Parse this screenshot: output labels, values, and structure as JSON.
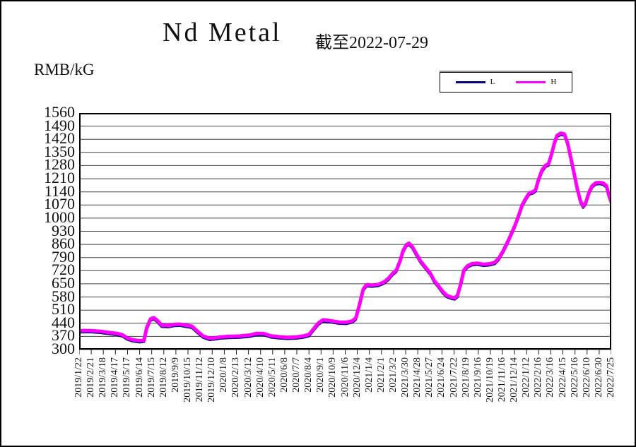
{
  "header": {
    "title": "Nd Metal",
    "asof_label": "截至2022-07-29"
  },
  "y_axis": {
    "unit_label": "RMB/kG"
  },
  "legend": {
    "items": [
      {
        "label": "L",
        "color": "#000080"
      },
      {
        "label": "H",
        "color": "#FF00FF"
      }
    ]
  },
  "chart_data": {
    "type": "line",
    "title": "Nd Metal",
    "subtitle": "截至2022-07-29",
    "ylabel": "RMB/kG",
    "ylim": [
      300,
      1560
    ],
    "y_tick_step": 70,
    "grid": "horizontal",
    "legend_position": "top-right",
    "y_ticks": [
      1560,
      1490,
      1420,
      1350,
      1280,
      1210,
      1140,
      1070,
      1000,
      930,
      860,
      790,
      720,
      650,
      580,
      510,
      440,
      370,
      300
    ],
    "x_tick_labels": [
      "2019/1/22",
      "2019/2/21",
      "2019/3/18",
      "2019/4/17",
      "2019/5/17",
      "2019/6/14",
      "2019/7/15",
      "2019/8/12",
      "2019/9/9",
      "2019/10/15",
      "2019/11/12",
      "2019/12/10",
      "2020/1/8",
      "2020/2/13",
      "2020/3/12",
      "2020/4/10",
      "2020/5/11",
      "2020/6/8",
      "2020/7/7",
      "2020/8/4",
      "2020/9/1",
      "2020/10/9",
      "2020/11/6",
      "2020/12/4",
      "2021/1/4",
      "2021/2/1",
      "2021/3/2",
      "2021/3/30",
      "2021/4/28",
      "2021/5/27",
      "2021/6/24",
      "2021/7/22",
      "2021/8/19",
      "2021/9/16",
      "2021/10/19",
      "2021/11/16",
      "2021/12/14",
      "2022/1/12",
      "2022/2/16",
      "2022/3/16",
      "2022/4/15",
      "2022/5/16",
      "2022/6/10",
      "2022/6/30",
      "2022/7/25"
    ],
    "series": [
      {
        "name": "L",
        "color": "#000080",
        "width": 3.5,
        "points": [
          [
            0.0,
            392
          ],
          [
            0.02,
            393
          ],
          [
            0.04,
            389
          ],
          [
            0.056,
            383
          ],
          [
            0.07,
            378
          ],
          [
            0.082,
            370
          ],
          [
            0.09,
            354
          ],
          [
            0.101,
            344
          ],
          [
            0.114,
            339
          ],
          [
            0.122,
            342
          ],
          [
            0.127,
            407
          ],
          [
            0.134,
            454
          ],
          [
            0.14,
            462
          ],
          [
            0.147,
            447
          ],
          [
            0.155,
            422
          ],
          [
            0.167,
            420
          ],
          [
            0.179,
            426
          ],
          [
            0.189,
            427
          ],
          [
            0.2,
            422
          ],
          [
            0.212,
            416
          ],
          [
            0.222,
            390
          ],
          [
            0.233,
            364
          ],
          [
            0.245,
            352
          ],
          [
            0.254,
            354
          ],
          [
            0.265,
            359
          ],
          [
            0.281,
            362
          ],
          [
            0.302,
            364
          ],
          [
            0.321,
            369
          ],
          [
            0.334,
            378
          ],
          [
            0.347,
            377
          ],
          [
            0.36,
            365
          ],
          [
            0.376,
            360
          ],
          [
            0.392,
            357
          ],
          [
            0.408,
            359
          ],
          [
            0.421,
            364
          ],
          [
            0.432,
            372
          ],
          [
            0.442,
            407
          ],
          [
            0.45,
            434
          ],
          [
            0.458,
            450
          ],
          [
            0.469,
            447
          ],
          [
            0.479,
            442
          ],
          [
            0.49,
            438
          ],
          [
            0.502,
            437
          ],
          [
            0.513,
            444
          ],
          [
            0.52,
            460
          ],
          [
            0.527,
            532
          ],
          [
            0.534,
            614
          ],
          [
            0.54,
            637
          ],
          [
            0.551,
            635
          ],
          [
            0.562,
            639
          ],
          [
            0.572,
            650
          ],
          [
            0.581,
            670
          ],
          [
            0.589,
            697
          ],
          [
            0.596,
            714
          ],
          [
            0.603,
            764
          ],
          [
            0.609,
            820
          ],
          [
            0.615,
            850
          ],
          [
            0.62,
            858
          ],
          [
            0.626,
            840
          ],
          [
            0.634,
            800
          ],
          [
            0.642,
            762
          ],
          [
            0.65,
            734
          ],
          [
            0.66,
            698
          ],
          [
            0.667,
            660
          ],
          [
            0.675,
            632
          ],
          [
            0.683,
            602
          ],
          [
            0.691,
            580
          ],
          [
            0.699,
            571
          ],
          [
            0.706,
            567
          ],
          [
            0.711,
            580
          ],
          [
            0.717,
            640
          ],
          [
            0.723,
            714
          ],
          [
            0.73,
            738
          ],
          [
            0.738,
            749
          ],
          [
            0.748,
            752
          ],
          [
            0.76,
            746
          ],
          [
            0.772,
            749
          ],
          [
            0.781,
            756
          ],
          [
            0.789,
            780
          ],
          [
            0.797,
            818
          ],
          [
            0.805,
            864
          ],
          [
            0.813,
            914
          ],
          [
            0.82,
            960
          ],
          [
            0.827,
            1014
          ],
          [
            0.833,
            1064
          ],
          [
            0.84,
            1100
          ],
          [
            0.846,
            1126
          ],
          [
            0.853,
            1132
          ],
          [
            0.858,
            1144
          ],
          [
            0.863,
            1194
          ],
          [
            0.87,
            1248
          ],
          [
            0.877,
            1274
          ],
          [
            0.882,
            1280
          ],
          [
            0.887,
            1324
          ],
          [
            0.893,
            1390
          ],
          [
            0.898,
            1432
          ],
          [
            0.905,
            1444
          ],
          [
            0.912,
            1440
          ],
          [
            0.918,
            1390
          ],
          [
            0.925,
            1300
          ],
          [
            0.931,
            1220
          ],
          [
            0.936,
            1150
          ],
          [
            0.942,
            1084
          ],
          [
            0.947,
            1056
          ],
          [
            0.952,
            1074
          ],
          [
            0.958,
            1128
          ],
          [
            0.964,
            1164
          ],
          [
            0.971,
            1180
          ],
          [
            0.979,
            1182
          ],
          [
            0.985,
            1178
          ],
          [
            0.991,
            1164
          ],
          [
            0.995,
            1120
          ],
          [
            1.0,
            1077
          ]
        ]
      },
      {
        "name": "H",
        "color": "#FF00FF",
        "width": 5,
        "points": [
          [
            0.0,
            400
          ],
          [
            0.02,
            401
          ],
          [
            0.04,
            397
          ],
          [
            0.056,
            391
          ],
          [
            0.07,
            386
          ],
          [
            0.082,
            378
          ],
          [
            0.09,
            362
          ],
          [
            0.101,
            352
          ],
          [
            0.114,
            347
          ],
          [
            0.122,
            350
          ],
          [
            0.127,
            415
          ],
          [
            0.134,
            462
          ],
          [
            0.14,
            470
          ],
          [
            0.147,
            455
          ],
          [
            0.155,
            430
          ],
          [
            0.167,
            428
          ],
          [
            0.179,
            434
          ],
          [
            0.189,
            435
          ],
          [
            0.2,
            430
          ],
          [
            0.212,
            424
          ],
          [
            0.222,
            398
          ],
          [
            0.233,
            372
          ],
          [
            0.245,
            360
          ],
          [
            0.254,
            362
          ],
          [
            0.265,
            367
          ],
          [
            0.281,
            370
          ],
          [
            0.302,
            372
          ],
          [
            0.321,
            377
          ],
          [
            0.334,
            386
          ],
          [
            0.347,
            385
          ],
          [
            0.36,
            373
          ],
          [
            0.376,
            368
          ],
          [
            0.392,
            365
          ],
          [
            0.408,
            367
          ],
          [
            0.421,
            372
          ],
          [
            0.432,
            380
          ],
          [
            0.442,
            415
          ],
          [
            0.45,
            442
          ],
          [
            0.458,
            458
          ],
          [
            0.469,
            455
          ],
          [
            0.479,
            450
          ],
          [
            0.49,
            446
          ],
          [
            0.502,
            445
          ],
          [
            0.513,
            452
          ],
          [
            0.52,
            468
          ],
          [
            0.527,
            540
          ],
          [
            0.534,
            622
          ],
          [
            0.54,
            645
          ],
          [
            0.551,
            643
          ],
          [
            0.562,
            647
          ],
          [
            0.572,
            658
          ],
          [
            0.581,
            678
          ],
          [
            0.589,
            705
          ],
          [
            0.596,
            722
          ],
          [
            0.603,
            772
          ],
          [
            0.609,
            828
          ],
          [
            0.615,
            858
          ],
          [
            0.62,
            866
          ],
          [
            0.626,
            848
          ],
          [
            0.634,
            808
          ],
          [
            0.642,
            770
          ],
          [
            0.65,
            742
          ],
          [
            0.66,
            706
          ],
          [
            0.667,
            668
          ],
          [
            0.675,
            640
          ],
          [
            0.683,
            610
          ],
          [
            0.691,
            588
          ],
          [
            0.699,
            579
          ],
          [
            0.706,
            575
          ],
          [
            0.711,
            588
          ],
          [
            0.717,
            648
          ],
          [
            0.723,
            722
          ],
          [
            0.73,
            746
          ],
          [
            0.738,
            757
          ],
          [
            0.748,
            760
          ],
          [
            0.76,
            754
          ],
          [
            0.772,
            757
          ],
          [
            0.781,
            764
          ],
          [
            0.789,
            788
          ],
          [
            0.797,
            826
          ],
          [
            0.805,
            872
          ],
          [
            0.813,
            922
          ],
          [
            0.82,
            968
          ],
          [
            0.827,
            1022
          ],
          [
            0.833,
            1072
          ],
          [
            0.84,
            1108
          ],
          [
            0.846,
            1134
          ],
          [
            0.853,
            1140
          ],
          [
            0.858,
            1152
          ],
          [
            0.863,
            1202
          ],
          [
            0.87,
            1256
          ],
          [
            0.877,
            1282
          ],
          [
            0.882,
            1288
          ],
          [
            0.887,
            1332
          ],
          [
            0.893,
            1398
          ],
          [
            0.898,
            1440
          ],
          [
            0.905,
            1452
          ],
          [
            0.912,
            1448
          ],
          [
            0.918,
            1398
          ],
          [
            0.925,
            1308
          ],
          [
            0.931,
            1228
          ],
          [
            0.936,
            1158
          ],
          [
            0.942,
            1092
          ],
          [
            0.947,
            1064
          ],
          [
            0.952,
            1082
          ],
          [
            0.958,
            1136
          ],
          [
            0.964,
            1172
          ],
          [
            0.971,
            1188
          ],
          [
            0.979,
            1190
          ],
          [
            0.985,
            1186
          ],
          [
            0.991,
            1172
          ],
          [
            0.995,
            1128
          ],
          [
            1.0,
            1085
          ]
        ]
      }
    ]
  }
}
